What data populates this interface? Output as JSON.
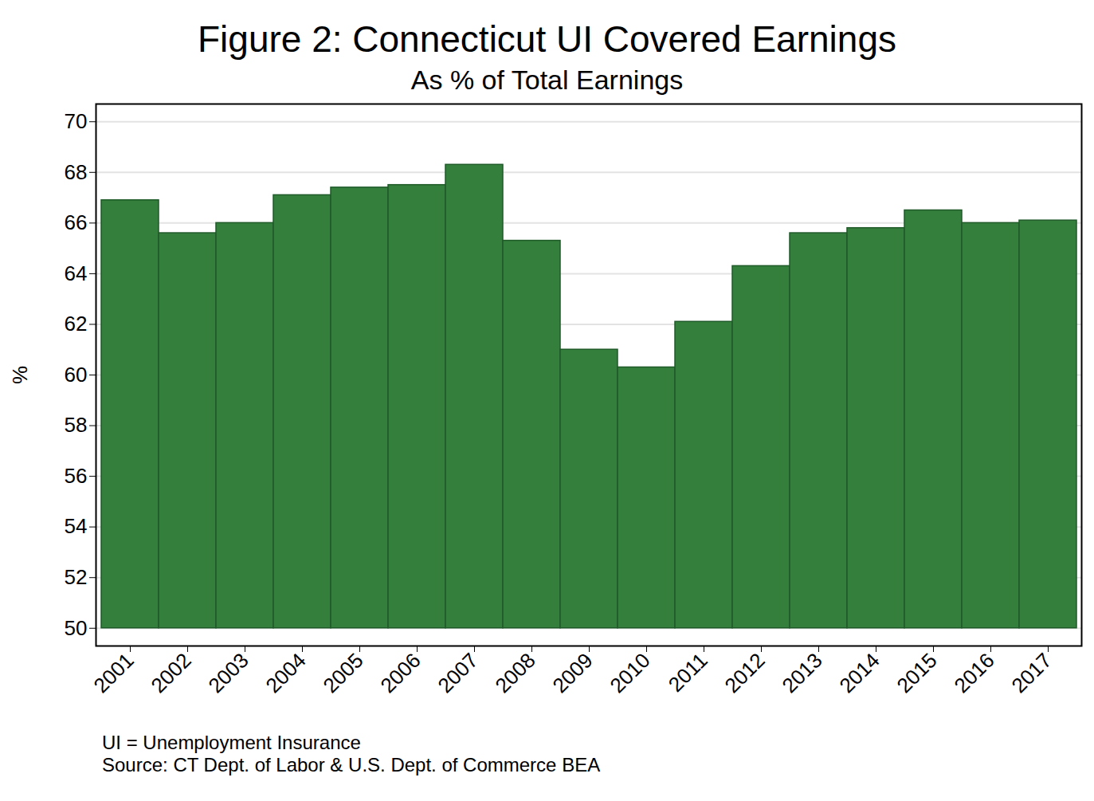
{
  "chart_data": {
    "type": "bar",
    "title": "Figure 2: Connecticut UI Covered Earnings",
    "subtitle": "As % of Total Earnings",
    "y_label": "%",
    "notes": [
      "UI = Unemployment Insurance",
      "Source: CT Dept. of Labor & U.S. Dept. of Commerce BEA"
    ],
    "categories": [
      "2001",
      "2002",
      "2003",
      "2004",
      "2005",
      "2006",
      "2007",
      "2008",
      "2009",
      "2010",
      "2011",
      "2012",
      "2013",
      "2014",
      "2015",
      "2016",
      "2017"
    ],
    "values": [
      66.9,
      65.6,
      66.0,
      67.1,
      67.4,
      67.5,
      68.3,
      65.3,
      61.0,
      60.3,
      62.1,
      64.3,
      65.6,
      65.8,
      66.5,
      66.0,
      66.1
    ],
    "color": "#357f3d",
    "ylim": [
      49.3,
      70.7
    ],
    "yticks": [
      50,
      52,
      54,
      56,
      58,
      60,
      62,
      64,
      66,
      68,
      70
    ],
    "grid": true
  }
}
